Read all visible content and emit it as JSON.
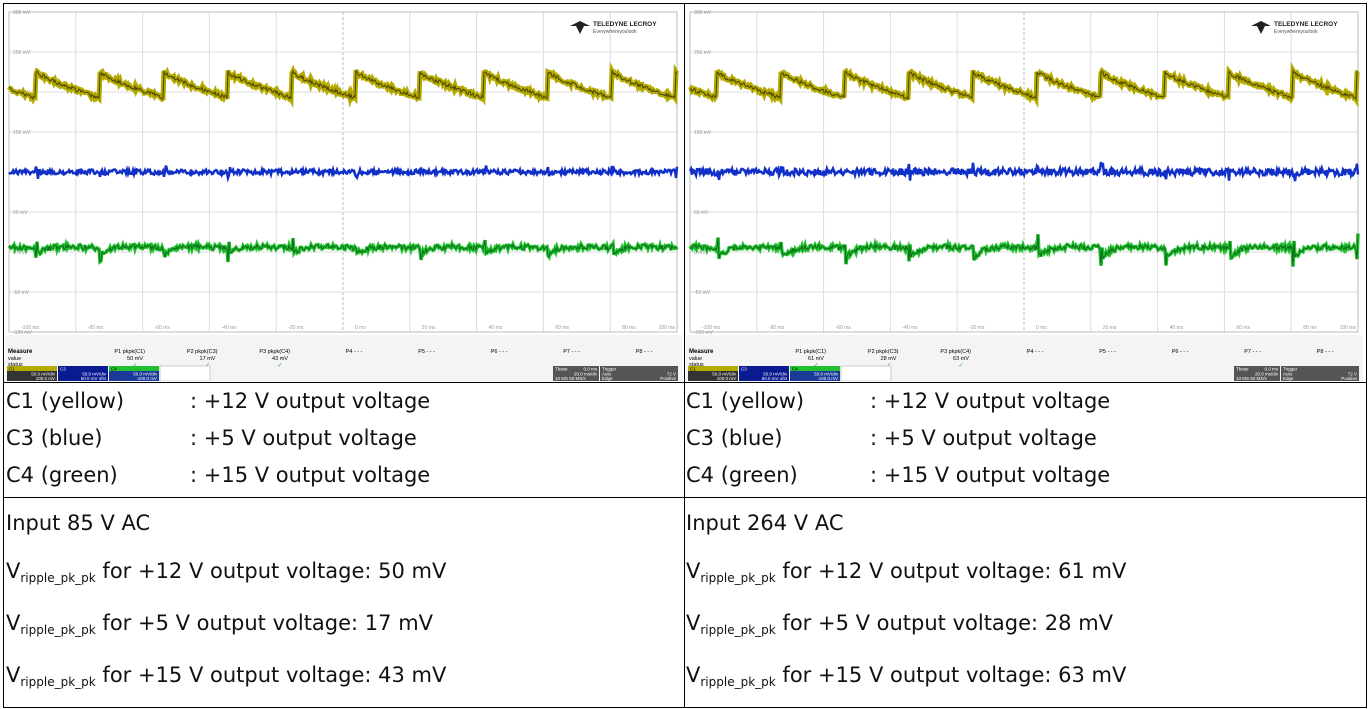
{
  "panels": [
    {
      "scope": {
        "logo": {
          "brand": "TELEDYNE LECROY",
          "tagline": "Everywhereyoulook"
        },
        "y_labels": [
          "300 mV",
          "250 mV",
          "200 mV",
          "150 mV",
          "100 mV",
          "50 mV",
          "0 mV",
          "-50 mV",
          "-100 mV"
        ],
        "x_labels": [
          "-100 ms",
          "-80 ms",
          "-60 ms",
          "-40 ms",
          "-20 ms",
          "0 ms",
          "20 ms",
          "40 ms",
          "60 ms",
          "80 ms",
          "100 ms"
        ],
        "measure": {
          "title": "Measure",
          "rows": [
            "value",
            "status"
          ],
          "params": [
            {
              "name": "P1 pkpk(C1)",
              "value": "50 mV",
              "status": "✓"
            },
            {
              "name": "P2 pkpk(C3)",
              "value": "17 mV",
              "status": "✓"
            },
            {
              "name": "P3 pkpk(C4)",
              "value": "43 mV",
              "status": "✓"
            },
            {
              "name": "P4 - - -"
            },
            {
              "name": "P5 - - -"
            },
            {
              "name": "P6 - - -"
            },
            {
              "name": "P7 - - -"
            },
            {
              "name": "P8 - - -"
            }
          ]
        },
        "channels": [
          {
            "name": "C1",
            "div": "50.0 mV/div",
            "offset": "100.0 mV"
          },
          {
            "name": "C3",
            "div": "50.0 mV/div",
            "offset": "50.0 mV ofst"
          },
          {
            "name": "C4",
            "div": "50.0 mV/div",
            "offset": "-100.0 mV"
          }
        ],
        "timebase": {
          "label": "Tbase",
          "delay": "0.0 ms",
          "div": "20.0 ms/div",
          "rate": "10 MS 50 MS/s"
        },
        "trigger": {
          "label": "Trigger",
          "mode": "Auto",
          "level": "72 V",
          "type": "Edge",
          "slope": "Positive"
        }
      },
      "legend": [
        {
          "name": "C1 (yellow)",
          "desc": ": +12 V output voltage"
        },
        {
          "name": "C3 (blue)",
          "desc": ": +5 V output voltage"
        },
        {
          "name": "C4 (green)",
          "desc": ": +15 V output voltage"
        }
      ],
      "input": "Input 85 V AC",
      "ripples": [
        {
          "symbol": "V",
          "subscript": "ripple_pk_pk",
          "text": "for +12 V output voltage: 50 mV"
        },
        {
          "symbol": "V",
          "subscript": "ripple_pk_pk",
          "text": "for +5 V output voltage: 17 mV"
        },
        {
          "symbol": "V",
          "subscript": "ripple_pk_pk",
          "text": "for +15 V output voltage: 43 mV"
        }
      ]
    },
    {
      "scope": {
        "logo": {
          "brand": "TELEDYNE LECROY",
          "tagline": "Everywhereyoulook"
        },
        "y_labels": [
          "300 mV",
          "250 mV",
          "200 mV",
          "150 mV",
          "100 mV",
          "50 mV",
          "0 mV",
          "-50 mV",
          "-100 mV"
        ],
        "x_labels": [
          "-100 ms",
          "-80 ms",
          "-60 ms",
          "-40 ms",
          "-20 ms",
          "0 ms",
          "20 ms",
          "40 ms",
          "60 ms",
          "80 ms",
          "100 ms"
        ],
        "measure": {
          "title": "Measure",
          "rows": [
            "value",
            "status"
          ],
          "params": [
            {
              "name": "P1 pkpk(C1)",
              "value": "61 mV",
              "status": "✓"
            },
            {
              "name": "P2 pkpk(C3)",
              "value": "28 mV",
              "status": "✓"
            },
            {
              "name": "P3 pkpk(C4)",
              "value": "63 mV",
              "status": "✓"
            },
            {
              "name": "P4 - - -"
            },
            {
              "name": "P5 - - -"
            },
            {
              "name": "P6 - - -"
            },
            {
              "name": "P7 - - -"
            },
            {
              "name": "P8 - - -"
            }
          ]
        },
        "channels": [
          {
            "name": "C1",
            "div": "50.0 mV/div",
            "offset": "100.0 mV"
          },
          {
            "name": "C3",
            "div": "50.0 mV/div",
            "offset": "50.0 mV ofst"
          },
          {
            "name": "C4",
            "div": "50.0 mV/div",
            "offset": "-100.0 mV"
          }
        ],
        "timebase": {
          "label": "Tbase",
          "delay": "0.0 ms",
          "div": "20.0 ms/div",
          "rate": "10 MS 50 MS/s"
        },
        "trigger": {
          "label": "Trigger",
          "mode": "Auto",
          "level": "72 V",
          "type": "Edge",
          "slope": "Positive"
        }
      },
      "legend": [
        {
          "name": "C1 (yellow)",
          "desc": ": +12 V output voltage"
        },
        {
          "name": "C3 (blue)",
          "desc": ": +5 V output voltage"
        },
        {
          "name": "C4 (green)",
          "desc": ": +15 V output voltage"
        }
      ],
      "input": "Input 264 V AC",
      "ripples": [
        {
          "symbol": "V",
          "subscript": "ripple_pk_pk",
          "text": "for +12 V output voltage: 61 mV"
        },
        {
          "symbol": "V",
          "subscript": "ripple_pk_pk",
          "text": "for +5 V output voltage: 28 mV"
        },
        {
          "symbol": "V",
          "subscript": "ripple_pk_pk",
          "text": "for +15 V output voltage: 63 mV"
        }
      ]
    }
  ]
}
